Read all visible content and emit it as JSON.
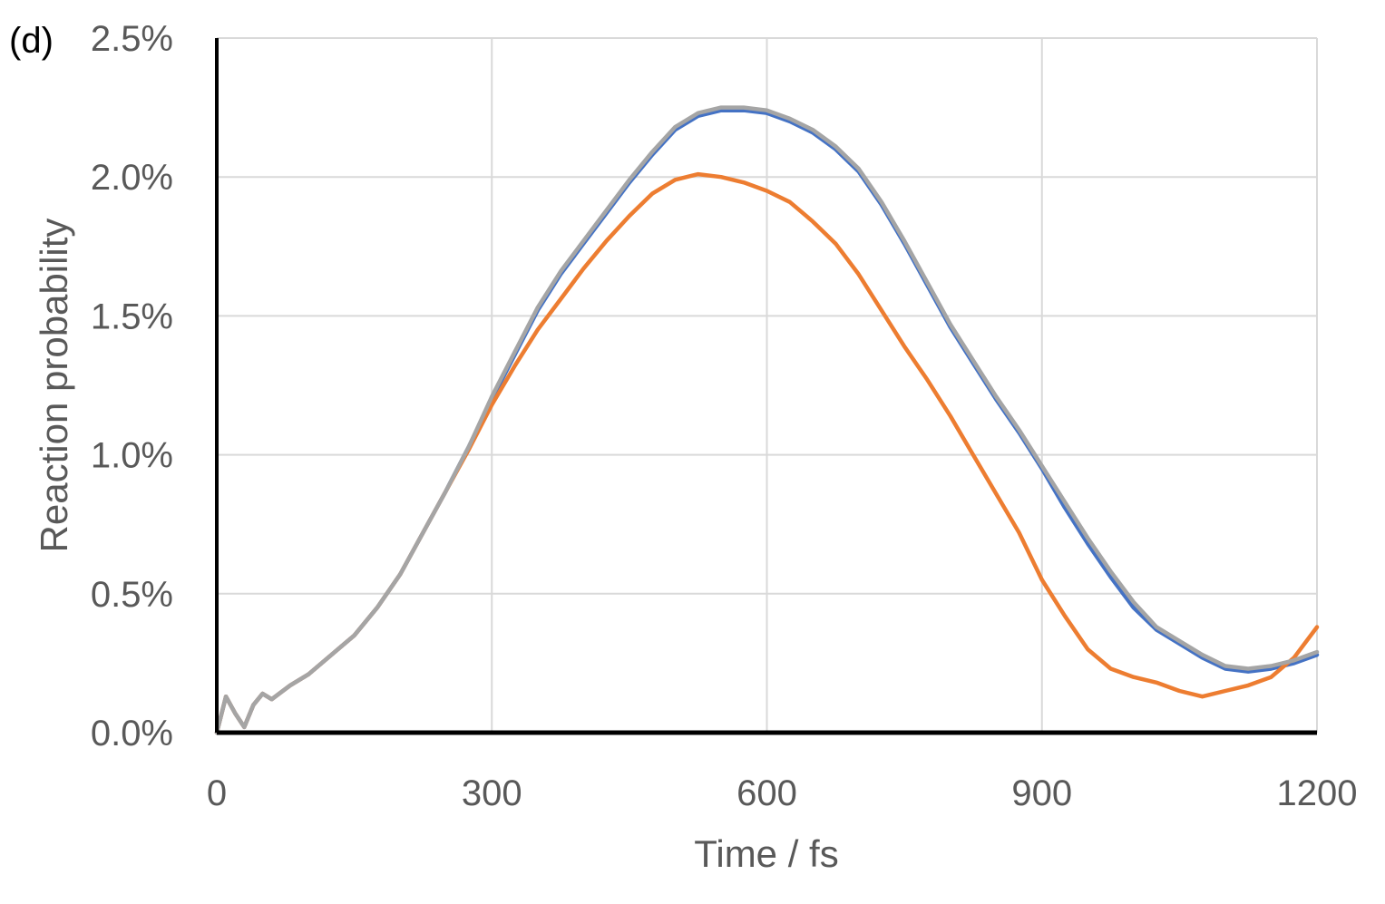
{
  "chart_data": {
    "type": "line",
    "panel_label": "(d)",
    "xlabel": "Time / fs",
    "ylabel": "Reaction probability",
    "xlim": [
      0,
      1200
    ],
    "ylim": [
      0,
      2.5
    ],
    "x_ticks": [
      0,
      300,
      600,
      900,
      1200
    ],
    "x_tick_labels": [
      "0",
      "300",
      "600",
      "900",
      "1200"
    ],
    "y_ticks": [
      0,
      0.5,
      1.0,
      1.5,
      2.0,
      2.5
    ],
    "y_tick_labels": [
      "0.0%",
      "0.5%",
      "1.0%",
      "1.5%",
      "2.0%",
      "2.5%"
    ],
    "grid": true,
    "legend": "none",
    "series": [
      {
        "name": "blue",
        "color": "#4472C4",
        "x": [
          0,
          10,
          20,
          30,
          40,
          50,
          60,
          80,
          100,
          125,
          150,
          175,
          200,
          225,
          250,
          275,
          300,
          325,
          350,
          375,
          400,
          425,
          450,
          475,
          500,
          525,
          550,
          575,
          600,
          625,
          650,
          675,
          700,
          725,
          750,
          775,
          800,
          825,
          850,
          875,
          900,
          925,
          950,
          975,
          1000,
          1025,
          1050,
          1075,
          1100,
          1125,
          1150,
          1175,
          1200
        ],
        "values": [
          0.0,
          0.13,
          0.07,
          0.02,
          0.1,
          0.14,
          0.12,
          0.17,
          0.21,
          0.28,
          0.35,
          0.45,
          0.57,
          0.72,
          0.87,
          1.03,
          1.2,
          1.36,
          1.52,
          1.65,
          1.76,
          1.87,
          1.98,
          2.08,
          2.17,
          2.22,
          2.24,
          2.24,
          2.23,
          2.2,
          2.16,
          2.1,
          2.02,
          1.9,
          1.76,
          1.61,
          1.46,
          1.33,
          1.2,
          1.08,
          0.95,
          0.81,
          0.68,
          0.56,
          0.45,
          0.37,
          0.32,
          0.27,
          0.23,
          0.22,
          0.23,
          0.25,
          0.28
        ]
      },
      {
        "name": "orange",
        "color": "#ED7D31",
        "x": [
          0,
          10,
          20,
          30,
          40,
          50,
          60,
          80,
          100,
          125,
          150,
          175,
          200,
          225,
          250,
          275,
          300,
          325,
          350,
          375,
          400,
          425,
          450,
          475,
          500,
          525,
          550,
          575,
          600,
          625,
          650,
          675,
          700,
          725,
          750,
          775,
          800,
          825,
          850,
          875,
          900,
          925,
          950,
          975,
          1000,
          1025,
          1050,
          1075,
          1100,
          1125,
          1150,
          1175,
          1200
        ],
        "values": [
          0.0,
          0.13,
          0.07,
          0.02,
          0.1,
          0.14,
          0.12,
          0.17,
          0.21,
          0.28,
          0.35,
          0.45,
          0.57,
          0.72,
          0.87,
          1.02,
          1.18,
          1.32,
          1.45,
          1.56,
          1.67,
          1.77,
          1.86,
          1.94,
          1.99,
          2.01,
          2.0,
          1.98,
          1.95,
          1.91,
          1.84,
          1.76,
          1.65,
          1.52,
          1.39,
          1.27,
          1.14,
          1.0,
          0.86,
          0.72,
          0.55,
          0.42,
          0.3,
          0.23,
          0.2,
          0.18,
          0.15,
          0.13,
          0.15,
          0.17,
          0.2,
          0.27,
          0.38
        ]
      },
      {
        "name": "gray",
        "color": "#A5A5A5",
        "x": [
          0,
          10,
          20,
          30,
          40,
          50,
          60,
          80,
          100,
          125,
          150,
          175,
          200,
          225,
          250,
          275,
          300,
          325,
          350,
          375,
          400,
          425,
          450,
          475,
          500,
          525,
          550,
          575,
          600,
          625,
          650,
          675,
          700,
          725,
          750,
          775,
          800,
          825,
          850,
          875,
          900,
          925,
          950,
          975,
          1000,
          1025,
          1050,
          1075,
          1100,
          1125,
          1150,
          1175,
          1200
        ],
        "values": [
          0.0,
          0.13,
          0.07,
          0.02,
          0.1,
          0.14,
          0.12,
          0.17,
          0.21,
          0.28,
          0.35,
          0.45,
          0.57,
          0.72,
          0.87,
          1.03,
          1.21,
          1.37,
          1.53,
          1.66,
          1.77,
          1.88,
          1.99,
          2.09,
          2.18,
          2.23,
          2.25,
          2.25,
          2.24,
          2.21,
          2.17,
          2.11,
          2.03,
          1.91,
          1.77,
          1.62,
          1.47,
          1.34,
          1.21,
          1.09,
          0.96,
          0.83,
          0.7,
          0.58,
          0.47,
          0.38,
          0.33,
          0.28,
          0.24,
          0.23,
          0.24,
          0.26,
          0.29
        ]
      }
    ]
  }
}
